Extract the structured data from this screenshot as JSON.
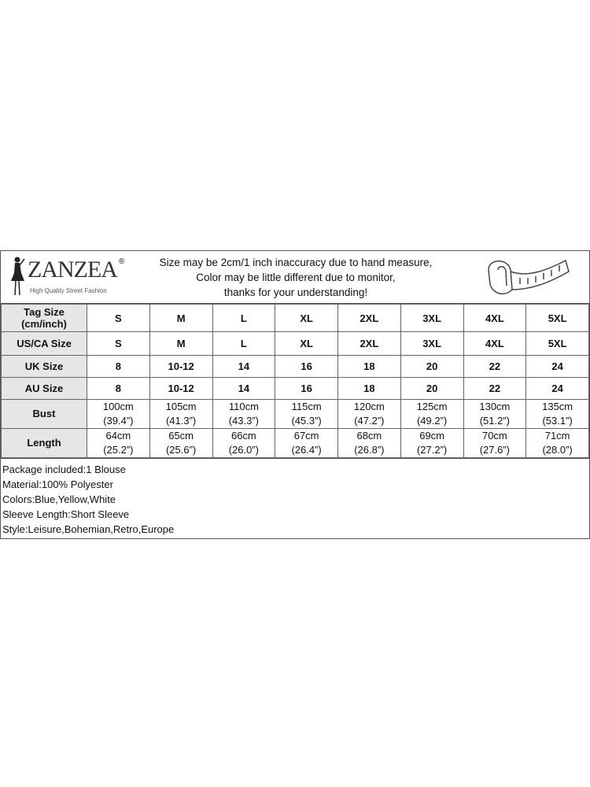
{
  "brand": {
    "name": "ZANZEA",
    "registered": "®",
    "tagline": "High Quality Street Fashion"
  },
  "notice": [
    "Size may be 2cm/1 inch inaccuracy due to hand measure,",
    "Color may be little different due to monitor,",
    "thanks for your understanding!"
  ],
  "table": {
    "rows": [
      {
        "label": "Tag Size (cm/inch)",
        "cells": [
          "S",
          "M",
          "L",
          "XL",
          "2XL",
          "3XL",
          "4XL",
          "5XL"
        ]
      },
      {
        "label": "US/CA Size",
        "cells": [
          "S",
          "M",
          "L",
          "XL",
          "2XL",
          "3XL",
          "4XL",
          "5XL"
        ]
      },
      {
        "label": "UK Size",
        "cells": [
          "8",
          "10-12",
          "14",
          "16",
          "18",
          "20",
          "22",
          "24"
        ]
      },
      {
        "label": "AU Size",
        "cells": [
          "8",
          "10-12",
          "14",
          "16",
          "18",
          "20",
          "22",
          "24"
        ]
      },
      {
        "label": "Bust",
        "cells": [
          [
            "100cm",
            "(39.4”)"
          ],
          [
            "105cm",
            "(41.3”)"
          ],
          [
            "110cm",
            "(43.3”)"
          ],
          [
            "115cm",
            "(45.3”)"
          ],
          [
            "120cm",
            "(47.2”)"
          ],
          [
            "125cm",
            "(49.2”)"
          ],
          [
            "130cm",
            "(51.2”)"
          ],
          [
            "135cm",
            "(53.1”)"
          ]
        ]
      },
      {
        "label": "Length",
        "cells": [
          [
            "64cm",
            "(25.2”)"
          ],
          [
            "65cm",
            "(25.6”)"
          ],
          [
            "66cm",
            "(26.0”)"
          ],
          [
            "67cm",
            "(26.4”)"
          ],
          [
            "68cm",
            "(26.8”)"
          ],
          [
            "69cm",
            "(27.2”)"
          ],
          [
            "70cm",
            "(27.6”)"
          ],
          [
            "71cm",
            "(28.0”)"
          ]
        ]
      }
    ]
  },
  "details": [
    "Package included:1 Blouse",
    "Material:100% Polyester",
    "Colors:Blue,Yellow,White",
    "Sleeve Length:Short Sleeve",
    "Style:Leisure,Bohemian,Retro,Europe"
  ]
}
